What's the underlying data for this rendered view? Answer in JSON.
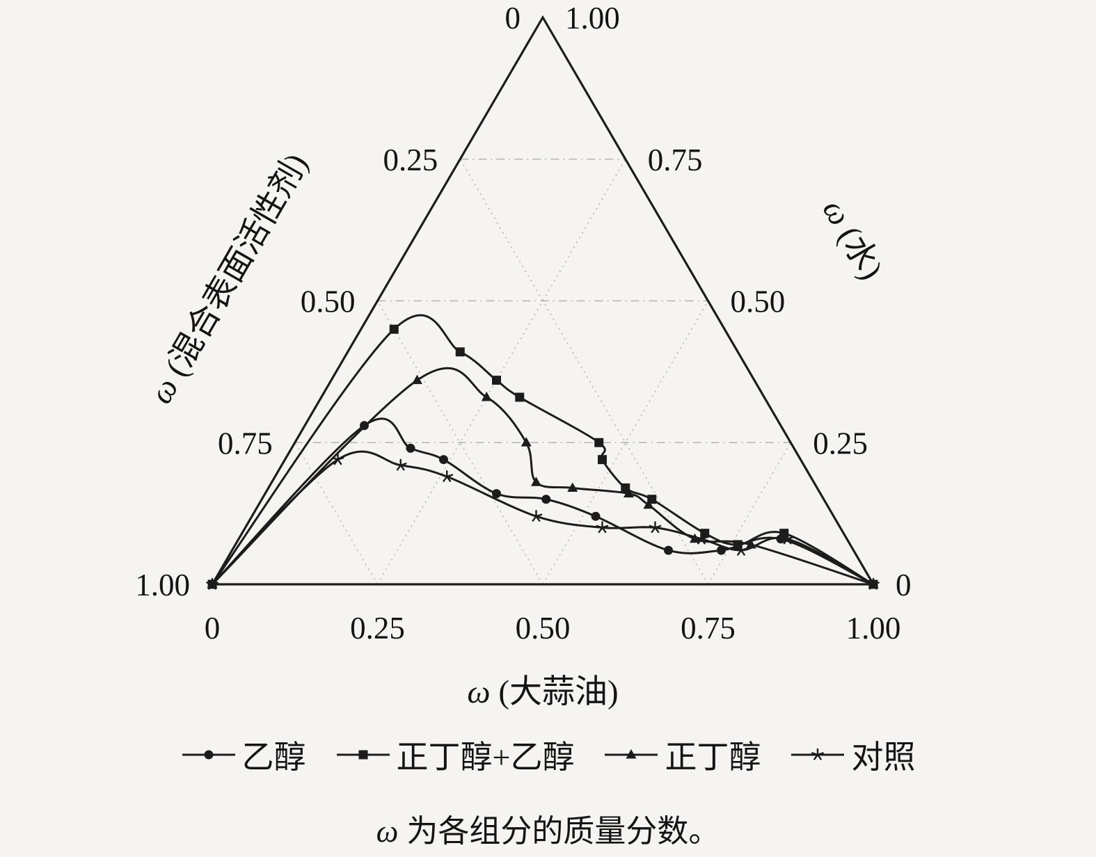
{
  "page": {
    "background": "#f5f4f1"
  },
  "colors": {
    "line": "#1c1c1c",
    "grid": "#b3b3b3",
    "text": "#141414"
  },
  "chart_data": {
    "type": "ternary-line",
    "coords": "points are [oil, water] mass fractions; surfactant = 1 - oil - water",
    "axes": {
      "left": {
        "label": "ω (混合表面活性剂)",
        "ticks": [
          "0",
          "0.25",
          "0.50",
          "0.75",
          "1.00"
        ]
      },
      "right": {
        "label": "ω (水)",
        "ticks": [
          "1.00",
          "0.75",
          "0.50",
          "0.25",
          "0"
        ]
      },
      "bottom": {
        "label": "ω (大蒜油)",
        "ticks": [
          "0",
          "0.25",
          "0.50",
          "0.75",
          "1.00"
        ]
      }
    },
    "grid": {
      "visible": true,
      "step": 0.25,
      "style": "dotted"
    },
    "series": [
      {
        "name": "乙醇",
        "marker": "circle",
        "points_oil_water": [
          [
            0,
            0
          ],
          [
            0.09,
            0.28
          ],
          [
            0.18,
            0.24
          ],
          [
            0.24,
            0.22
          ],
          [
            0.35,
            0.16
          ],
          [
            0.43,
            0.15
          ],
          [
            0.52,
            0.12
          ],
          [
            0.66,
            0.06
          ],
          [
            0.74,
            0.06
          ],
          [
            0.82,
            0.08
          ],
          [
            1,
            0
          ]
        ]
      },
      {
        "name": "正丁醇+乙醇",
        "marker": "square",
        "points_oil_water": [
          [
            0,
            0
          ],
          [
            0.05,
            0.45
          ],
          [
            0.17,
            0.41
          ],
          [
            0.25,
            0.36
          ],
          [
            0.3,
            0.33
          ],
          [
            0.46,
            0.25
          ],
          [
            0.48,
            0.22
          ],
          [
            0.54,
            0.17
          ],
          [
            0.59,
            0.15
          ],
          [
            0.7,
            0.09
          ],
          [
            0.76,
            0.07
          ],
          [
            0.82,
            0.09
          ],
          [
            1,
            0
          ]
        ]
      },
      {
        "name": "正丁醇",
        "marker": "triangle",
        "points_oil_water": [
          [
            0,
            0
          ],
          [
            0.13,
            0.36
          ],
          [
            0.25,
            0.33
          ],
          [
            0.35,
            0.25
          ],
          [
            0.4,
            0.18
          ],
          [
            0.46,
            0.17
          ],
          [
            0.55,
            0.16
          ],
          [
            0.59,
            0.14
          ],
          [
            0.69,
            0.08
          ],
          [
            0.78,
            0.07
          ],
          [
            1,
            0
          ]
        ]
      },
      {
        "name": "对照",
        "marker": "star",
        "points_oil_water": [
          [
            0,
            0
          ],
          [
            0.08,
            0.22
          ],
          [
            0.18,
            0.21
          ],
          [
            0.26,
            0.19
          ],
          [
            0.43,
            0.12
          ],
          [
            0.54,
            0.1
          ],
          [
            0.62,
            0.1
          ],
          [
            0.7,
            0.08
          ],
          [
            0.77,
            0.06
          ],
          [
            0.83,
            0.08
          ],
          [
            1,
            0
          ]
        ]
      }
    ]
  },
  "caption": {
    "symbol": "ω",
    "text": "为各组分的质量分数。"
  }
}
